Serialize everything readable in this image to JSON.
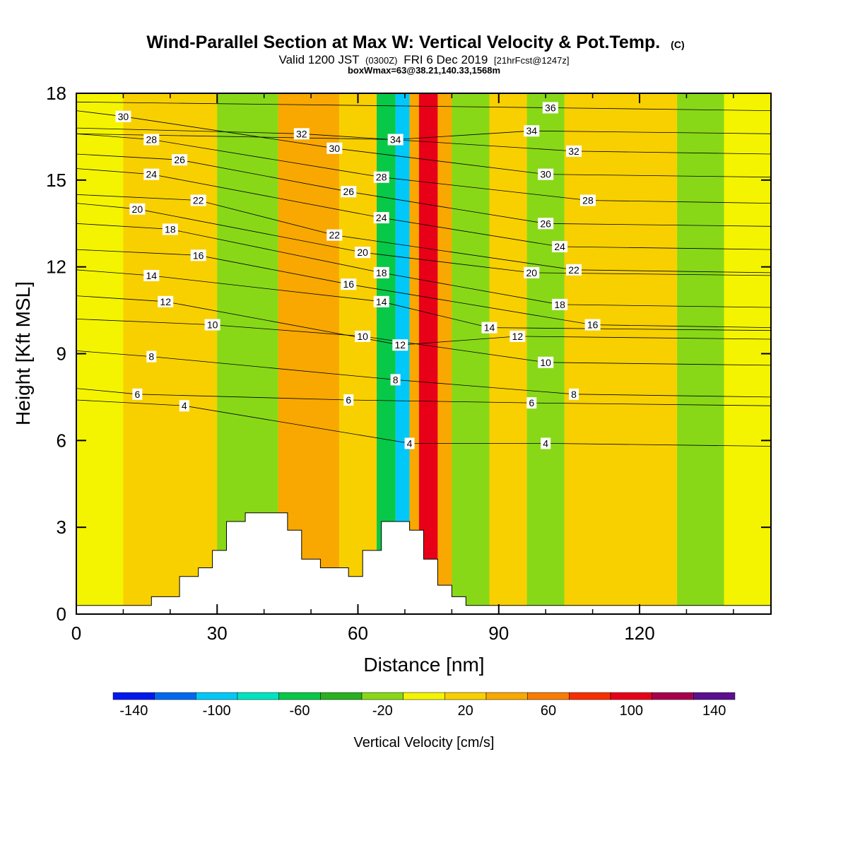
{
  "title": {
    "main": "Wind-Parallel Section at Max W: Vertical Velocity & Pot.Temp.",
    "copyright": "(C)",
    "valid_prefix": "Valid 1200 JST",
    "valid_utc": "(0300Z)",
    "valid_date": "FRI 6 Dec 2019",
    "forecast": "[21hrFcst@1247z]",
    "boxwmax": "boxWmax=63@38.21,140.33,1568m"
  },
  "chart_data": {
    "type": "heatmap",
    "xlabel": "Distance [nm]",
    "ylabel": "Height [Kft MSL]",
    "xlim": [
      0,
      148
    ],
    "ylim": [
      0,
      18
    ],
    "x_ticks": [
      0,
      30,
      60,
      90,
      120
    ],
    "y_ticks": [
      0,
      3,
      6,
      9,
      12,
      15,
      18
    ],
    "background_level": 0,
    "vertical_velocity_bands": [
      {
        "x0": 0,
        "x1": 10,
        "w": 0
      },
      {
        "x0": 10,
        "x1": 30,
        "w": 10
      },
      {
        "x0": 30,
        "x1": 43,
        "w": -20
      },
      {
        "x0": 43,
        "x1": 56,
        "w": 30
      },
      {
        "x0": 56,
        "x1": 64,
        "w": 10
      },
      {
        "x0": 64,
        "x1": 68,
        "w": -60
      },
      {
        "x0": 68,
        "x1": 71,
        "w": -100
      },
      {
        "x0": 71,
        "x1": 73,
        "w": 40
      },
      {
        "x0": 73,
        "x1": 77,
        "w": 100
      },
      {
        "x0": 77,
        "x1": 80,
        "w": 40
      },
      {
        "x0": 80,
        "x1": 88,
        "w": -20
      },
      {
        "x0": 88,
        "x1": 96,
        "w": 20
      },
      {
        "x0": 96,
        "x1": 104,
        "w": -20
      },
      {
        "x0": 104,
        "x1": 128,
        "w": 10
      },
      {
        "x0": 128,
        "x1": 138,
        "w": -30
      },
      {
        "x0": 138,
        "x1": 148,
        "w": 0
      }
    ],
    "terrain": [
      [
        0,
        0.3
      ],
      [
        16,
        0.3
      ],
      [
        16,
        0.6
      ],
      [
        22,
        0.6
      ],
      [
        22,
        1.3
      ],
      [
        26,
        1.3
      ],
      [
        26,
        1.6
      ],
      [
        29,
        1.6
      ],
      [
        29,
        2.2
      ],
      [
        32,
        2.2
      ],
      [
        32,
        3.2
      ],
      [
        36,
        3.2
      ],
      [
        36,
        3.5
      ],
      [
        45,
        3.5
      ],
      [
        45,
        2.9
      ],
      [
        48,
        2.9
      ],
      [
        48,
        1.9
      ],
      [
        52,
        1.9
      ],
      [
        52,
        1.6
      ],
      [
        58,
        1.6
      ],
      [
        58,
        1.3
      ],
      [
        61,
        1.3
      ],
      [
        61,
        2.2
      ],
      [
        65,
        2.2
      ],
      [
        65,
        3.2
      ],
      [
        71,
        3.2
      ],
      [
        71,
        2.9
      ],
      [
        74,
        2.9
      ],
      [
        74,
        1.9
      ],
      [
        77,
        1.9
      ],
      [
        77,
        1.0
      ],
      [
        80,
        1.0
      ],
      [
        80,
        0.6
      ],
      [
        83,
        0.6
      ],
      [
        83,
        0.3
      ],
      [
        148,
        0.3
      ]
    ],
    "theta_labels": [
      {
        "text": "30",
        "x": 10,
        "y": 17.2
      },
      {
        "text": "28",
        "x": 16,
        "y": 16.4
      },
      {
        "text": "26",
        "x": 22,
        "y": 15.7
      },
      {
        "text": "24",
        "x": 16,
        "y": 15.2
      },
      {
        "text": "22",
        "x": 26,
        "y": 14.3
      },
      {
        "text": "20",
        "x": 13,
        "y": 14.0
      },
      {
        "text": "18",
        "x": 20,
        "y": 13.3
      },
      {
        "text": "16",
        "x": 26,
        "y": 12.4
      },
      {
        "text": "14",
        "x": 16,
        "y": 11.7
      },
      {
        "text": "12",
        "x": 19,
        "y": 10.8
      },
      {
        "text": "10",
        "x": 29,
        "y": 10.0
      },
      {
        "text": "8",
        "x": 16,
        "y": 8.9
      },
      {
        "text": "6",
        "x": 13,
        "y": 7.6
      },
      {
        "text": "4",
        "x": 23,
        "y": 7.2
      },
      {
        "text": "32",
        "x": 48,
        "y": 16.6
      },
      {
        "text": "30",
        "x": 55,
        "y": 16.1
      },
      {
        "text": "26",
        "x": 58,
        "y": 14.6
      },
      {
        "text": "22",
        "x": 55,
        "y": 13.1
      },
      {
        "text": "20",
        "x": 61,
        "y": 12.5
      },
      {
        "text": "16",
        "x": 58,
        "y": 11.4
      },
      {
        "text": "10",
        "x": 61,
        "y": 9.6
      },
      {
        "text": "6",
        "x": 58,
        "y": 7.4
      },
      {
        "text": "34",
        "x": 68,
        "y": 16.4
      },
      {
        "text": "28",
        "x": 65,
        "y": 15.1
      },
      {
        "text": "24",
        "x": 65,
        "y": 13.7
      },
      {
        "text": "18",
        "x": 65,
        "y": 11.8
      },
      {
        "text": "14",
        "x": 65,
        "y": 10.8
      },
      {
        "text": "12",
        "x": 69,
        "y": 9.3
      },
      {
        "text": "8",
        "x": 68,
        "y": 8.1
      },
      {
        "text": "4",
        "x": 71,
        "y": 5.9
      },
      {
        "text": "36",
        "x": 101,
        "y": 17.5
      },
      {
        "text": "34",
        "x": 97,
        "y": 16.7
      },
      {
        "text": "32",
        "x": 106,
        "y": 16.0
      },
      {
        "text": "30",
        "x": 100,
        "y": 15.2
      },
      {
        "text": "28",
        "x": 109,
        "y": 14.3
      },
      {
        "text": "26",
        "x": 100,
        "y": 13.5
      },
      {
        "text": "24",
        "x": 103,
        "y": 12.7
      },
      {
        "text": "22",
        "x": 106,
        "y": 11.9
      },
      {
        "text": "20",
        "x": 97,
        "y": 11.8
      },
      {
        "text": "18",
        "x": 103,
        "y": 10.7
      },
      {
        "text": "16",
        "x": 110,
        "y": 10.0
      },
      {
        "text": "14",
        "x": 88,
        "y": 9.9
      },
      {
        "text": "12",
        "x": 94,
        "y": 9.6
      },
      {
        "text": "10",
        "x": 100,
        "y": 8.7
      },
      {
        "text": "8",
        "x": 106,
        "y": 7.6
      },
      {
        "text": "6",
        "x": 97,
        "y": 7.3
      },
      {
        "text": "4",
        "x": 100,
        "y": 5.9
      }
    ]
  },
  "colorbar": {
    "title": "Vertical Velocity [cm/s]",
    "min": -150,
    "max": 150,
    "step": 20,
    "labels": [
      "-140",
      "-100",
      "-60",
      "-20",
      "20",
      "60",
      "100",
      "140"
    ],
    "label_values": [
      -140,
      -100,
      -60,
      -20,
      20,
      60,
      100,
      140
    ],
    "colors": [
      "#0018f0",
      "#0068f0",
      "#00c8f8",
      "#00e4c0",
      "#08c848",
      "#28b020",
      "#88d818",
      "#f4f400",
      "#f8d000",
      "#f8a800",
      "#f87c00",
      "#f83000",
      "#e80018",
      "#a8004c",
      "#5a1090"
    ]
  }
}
